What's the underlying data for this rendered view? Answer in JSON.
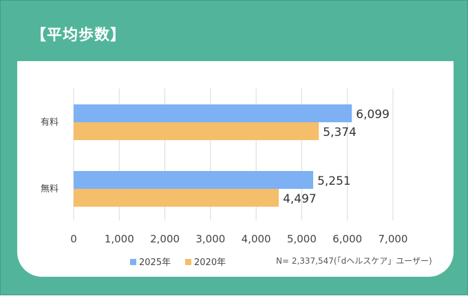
{
  "title": "【平均歩数】",
  "note": "N= 2,337,547(「dヘルスケア」ユーザー)",
  "colors": {
    "series_2025": "#7db1f4",
    "series_2020": "#f5be6b",
    "background": "#52b59b"
  },
  "chart_data": {
    "type": "bar",
    "orientation": "horizontal",
    "categories": [
      "有料",
      "無料"
    ],
    "series": [
      {
        "name": "2025年",
        "values": [
          6099,
          5251
        ],
        "labels": [
          "6,099",
          "5,251"
        ]
      },
      {
        "name": "2020年",
        "values": [
          5374,
          4497
        ],
        "labels": [
          "5,374",
          "4,497"
        ]
      }
    ],
    "xlim": [
      0,
      7000
    ],
    "ticks": [
      "0",
      "1,000",
      "2,000",
      "3,000",
      "4,000",
      "5,000",
      "6,000",
      "7,000"
    ],
    "grid": true,
    "legend_position": "bottom"
  }
}
